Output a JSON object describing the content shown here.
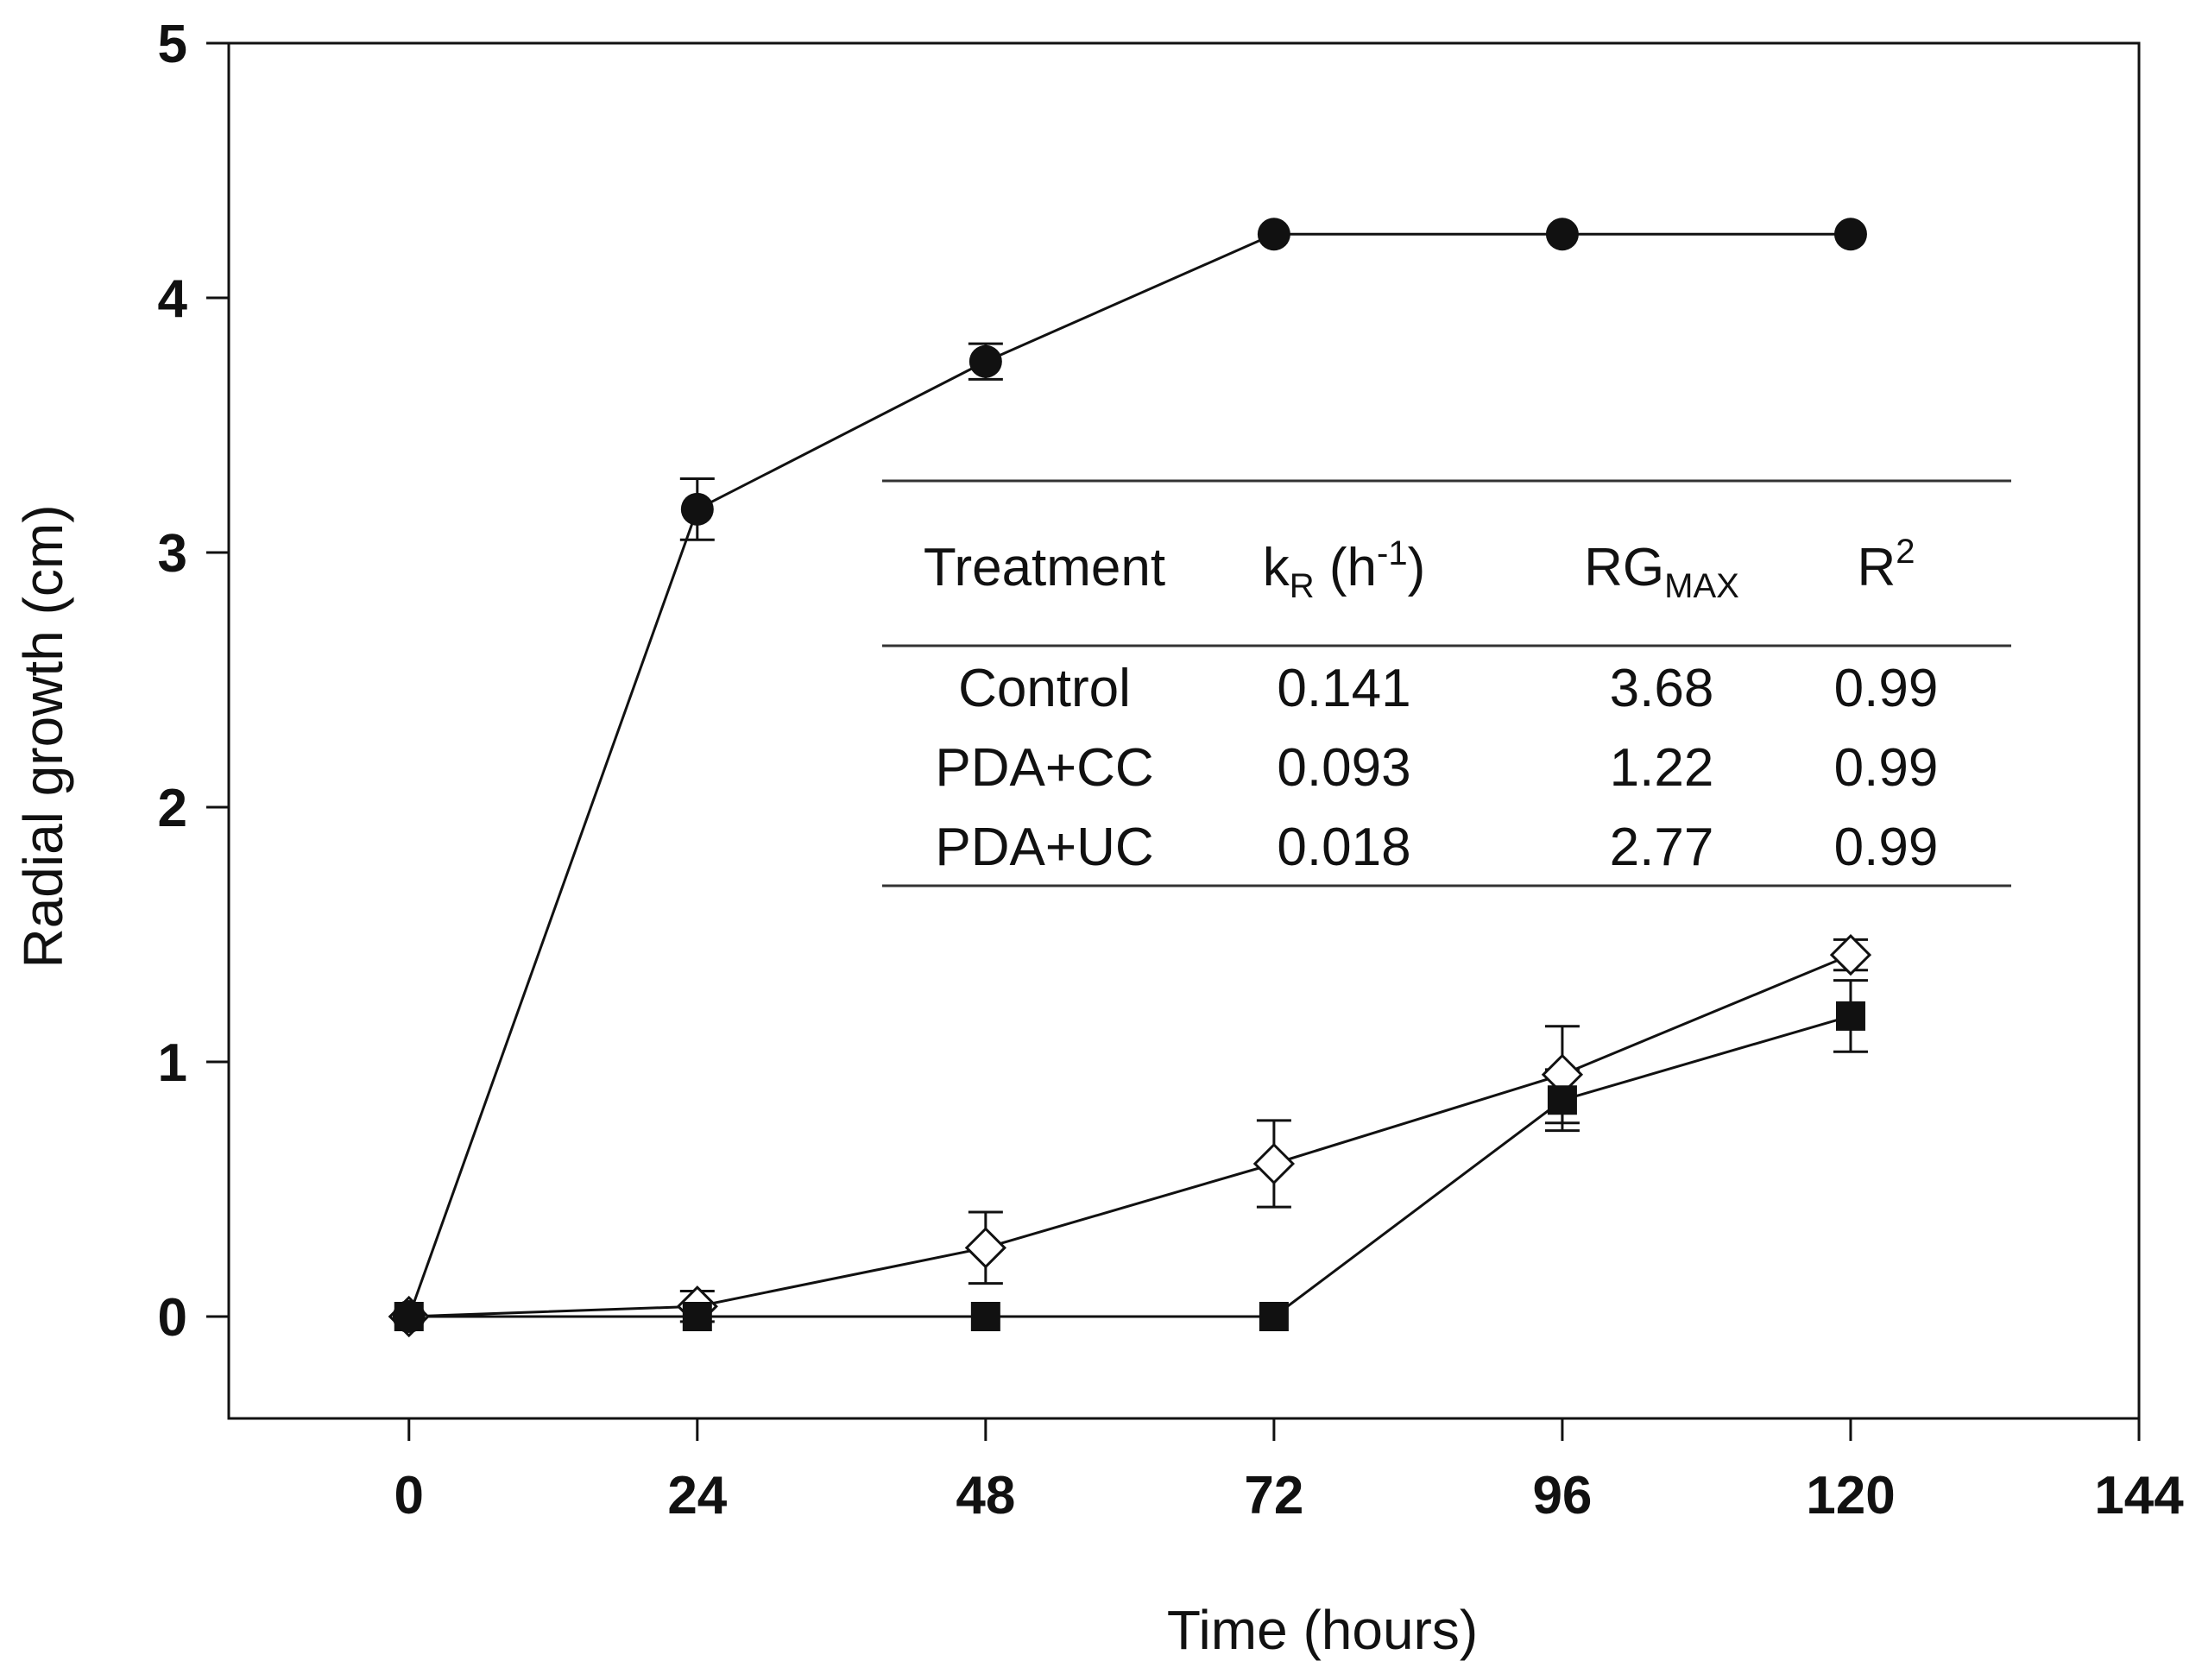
{
  "chart_data": {
    "type": "line",
    "title": "",
    "xlabel": "Time (hours)",
    "ylabel": "Radial growth (cm)",
    "xlim": [
      -15,
      144
    ],
    "ylim": [
      -0.4,
      5
    ],
    "x_ticks": [
      0,
      24,
      48,
      72,
      96,
      120,
      144
    ],
    "y_ticks": [
      0,
      1,
      2,
      3,
      4,
      5
    ],
    "x_tick_labels": [
      "0",
      "24",
      "48",
      "72",
      "96",
      "120",
      "144"
    ],
    "y_tick_labels": [
      "0",
      "1",
      "2",
      "3",
      "4",
      "5"
    ],
    "grid": false,
    "legend": "none",
    "series": [
      {
        "name": "Control",
        "marker": "filled-circle",
        "x": [
          0,
          24,
          48,
          72,
          96,
          120
        ],
        "y": [
          0,
          3.17,
          3.75,
          4.25,
          4.25,
          4.25
        ],
        "err": [
          0,
          0.12,
          0.07,
          0,
          0,
          0
        ]
      },
      {
        "name": "PDA+CC",
        "marker": "filled-square",
        "x": [
          0,
          24,
          48,
          72,
          96,
          120
        ],
        "y": [
          0,
          0,
          0,
          0,
          0.85,
          1.18
        ],
        "err": [
          0,
          0,
          0,
          0,
          0.12,
          0.14
        ]
      },
      {
        "name": "PDA+UC",
        "marker": "open-diamond",
        "x": [
          0,
          24,
          48,
          72,
          96,
          120
        ],
        "y": [
          0,
          0.04,
          0.27,
          0.6,
          0.95,
          1.42
        ],
        "err": [
          0,
          0.06,
          0.14,
          0.17,
          0.19,
          0.06
        ]
      }
    ],
    "inset_table": {
      "headers": [
        {
          "main": "Treatment",
          "sub": "",
          "paren": ""
        },
        {
          "main": "k",
          "sub": "R",
          "paren": "(h",
          "sup": "-1",
          "close": ")"
        },
        {
          "main": "RG",
          "sub": "MAX"
        },
        {
          "main": "R",
          "sup": "2"
        }
      ],
      "rows": [
        [
          "Control",
          "0.141",
          "3.68",
          "0.99"
        ],
        [
          "PDA+CC",
          "0.093",
          "1.22",
          "0.99"
        ],
        [
          "PDA+UC",
          "0.018",
          "2.77",
          "0.99"
        ]
      ]
    }
  }
}
